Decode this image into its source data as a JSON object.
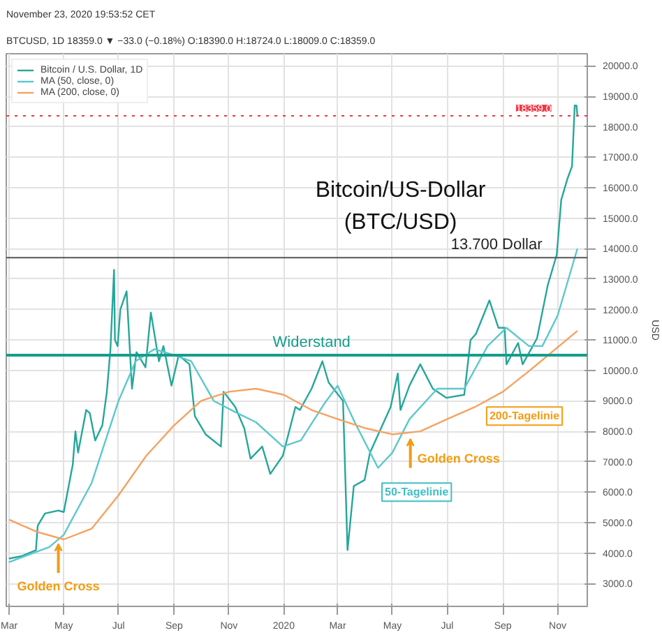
{
  "chart_data": {
    "type": "line",
    "title": "November 23, 2020 19:53:52 CET",
    "subtitle": "BTCUSD, 1D 18359.0 ▼ −33.0 (−0.18%) O:18390.0 H:18724.0 L:18009.0 C:18359.0",
    "ylabel": "USD",
    "series": [
      {
        "name": "Bitcoin / U.S. Dollar, 1D",
        "color": "#26a69a",
        "x": [
          "2019-03-01",
          "2019-03-15",
          "2019-03-31",
          "2019-04-02",
          "2019-04-10",
          "2019-04-25",
          "2019-05-01",
          "2019-05-11",
          "2019-05-14",
          "2019-05-17",
          "2019-05-26",
          "2019-05-30",
          "2019-06-05",
          "2019-06-13",
          "2019-06-18",
          "2019-06-22",
          "2019-06-26",
          "2019-06-27",
          "2019-06-30",
          "2019-07-03",
          "2019-07-10",
          "2019-07-16",
          "2019-07-21",
          "2019-07-31",
          "2019-08-06",
          "2019-08-15",
          "2019-08-20",
          "2019-08-29",
          "2019-09-06",
          "2019-09-18",
          "2019-09-24",
          "2019-10-06",
          "2019-10-23",
          "2019-10-26",
          "2019-11-08",
          "2019-11-18",
          "2019-11-25",
          "2019-12-08",
          "2019-12-17",
          "2019-12-31",
          "2020-01-14",
          "2020-01-19",
          "2020-02-01",
          "2020-02-13",
          "2020-02-20",
          "2020-03-07",
          "2020-03-12",
          "2020-03-19",
          "2020-03-31",
          "2020-04-06",
          "2020-04-29",
          "2020-05-07",
          "2020-05-10",
          "2020-05-20",
          "2020-06-01",
          "2020-06-15",
          "2020-06-30",
          "2020-07-20",
          "2020-07-27",
          "2020-08-02",
          "2020-08-17",
          "2020-08-27",
          "2020-09-03",
          "2020-09-05",
          "2020-09-18",
          "2020-09-23",
          "2020-10-09",
          "2020-10-21",
          "2020-10-31",
          "2020-11-05",
          "2020-11-12",
          "2020-11-17",
          "2020-11-20",
          "2020-11-22",
          "2020-11-23"
        ],
        "values": [
          3820,
          3900,
          4100,
          4900,
          5300,
          5400,
          5350,
          6900,
          8000,
          7300,
          8700,
          8600,
          7700,
          8200,
          9300,
          10700,
          13300,
          11000,
          10800,
          12000,
          12600,
          9400,
          10600,
          10100,
          11900,
          10300,
          10800,
          9500,
          10500,
          10200,
          8500,
          7900,
          7500,
          9300,
          8800,
          8100,
          7100,
          7500,
          6600,
          7200,
          8800,
          8700,
          9400,
          10300,
          9600,
          9000,
          4100,
          6200,
          6400,
          7300,
          8800,
          9900,
          8700,
          9500,
          10200,
          9400,
          9100,
          9200,
          11000,
          11200,
          12300,
          11400,
          11400,
          10200,
          10900,
          10200,
          11050,
          12800,
          13800,
          15600,
          16300,
          16700,
          18700,
          18700,
          18359
        ]
      },
      {
        "name": "MA (50, close, 0)",
        "color": "#5cc8cc",
        "x": [
          "2019-03-01",
          "2019-04-15",
          "2019-05-01",
          "2019-06-01",
          "2019-07-01",
          "2019-07-20",
          "2019-08-10",
          "2019-09-01",
          "2019-09-20",
          "2019-10-15",
          "2019-11-10",
          "2019-12-01",
          "2019-12-31",
          "2020-01-20",
          "2020-02-15",
          "2020-03-01",
          "2020-03-20",
          "2020-04-15",
          "2020-05-01",
          "2020-05-20",
          "2020-06-20",
          "2020-07-20",
          "2020-08-15",
          "2020-09-05",
          "2020-09-30",
          "2020-10-15",
          "2020-11-01",
          "2020-11-23"
        ],
        "values": [
          3700,
          4200,
          4600,
          6300,
          9000,
          10300,
          10700,
          10500,
          10300,
          9000,
          8600,
          8300,
          7500,
          7700,
          8900,
          9500,
          8300,
          6800,
          7300,
          8400,
          9400,
          9400,
          10800,
          11400,
          10800,
          10800,
          11800,
          14000
        ]
      },
      {
        "name": "MA (200, close, 0)",
        "color": "#f5a262",
        "x": [
          "2019-03-01",
          "2019-04-01",
          "2019-05-01",
          "2019-06-01",
          "2019-07-01",
          "2019-08-01",
          "2019-09-01",
          "2019-10-01",
          "2019-11-01",
          "2019-12-01",
          "2020-01-01",
          "2020-02-01",
          "2020-03-01",
          "2020-04-01",
          "2020-05-01",
          "2020-06-01",
          "2020-07-01",
          "2020-08-01",
          "2020-09-01",
          "2020-10-01",
          "2020-11-23"
        ],
        "values": [
          5100,
          4700,
          4450,
          4800,
          5900,
          7200,
          8200,
          9000,
          9300,
          9400,
          9200,
          8700,
          8400,
          8100,
          7900,
          8000,
          8400,
          8800,
          9300,
          10000,
          11300
        ]
      }
    ],
    "xlim": [
      "2019-02-26",
      "2020-12-04"
    ],
    "xticks": [
      {
        "value": "2019-03-01",
        "label": "Mar"
      },
      {
        "value": "2019-05-01",
        "label": "May"
      },
      {
        "value": "2019-07-01",
        "label": "Jul"
      },
      {
        "value": "2019-09-01",
        "label": "Sep"
      },
      {
        "value": "2019-11-01",
        "label": "Nov"
      },
      {
        "value": "2020-01-01",
        "label": "2020"
      },
      {
        "value": "2020-03-01",
        "label": "Mar"
      },
      {
        "value": "2020-05-01",
        "label": "May"
      },
      {
        "value": "2020-07-01",
        "label": "Jul"
      },
      {
        "value": "2020-09-01",
        "label": "Sep"
      },
      {
        "value": "2020-11-01",
        "label": "Nov"
      }
    ],
    "ylim": [
      2250,
      20400
    ],
    "yticks": [
      {
        "value": 3000,
        "label": "3000.0"
      },
      {
        "value": 4000,
        "label": "4000.0"
      },
      {
        "value": 5000,
        "label": "5000.0"
      },
      {
        "value": 6000,
        "label": "6000.0"
      },
      {
        "value": 7000,
        "label": "7000.0"
      },
      {
        "value": 8000,
        "label": "8000.0"
      },
      {
        "value": 9000,
        "label": "9000.0"
      },
      {
        "value": 10000,
        "label": "10000.0"
      },
      {
        "value": 11000,
        "label": "11000.0"
      },
      {
        "value": 12000,
        "label": "12000.0"
      },
      {
        "value": 13000,
        "label": "13000.0"
      },
      {
        "value": 14000,
        "label": "14000.0"
      },
      {
        "value": 15000,
        "label": "15000.0"
      },
      {
        "value": 16000,
        "label": "16000.0"
      },
      {
        "value": 17000,
        "label": "17000.0"
      },
      {
        "value": 18000,
        "label": "18000.0"
      },
      {
        "value": 19000,
        "label": "19000.0"
      },
      {
        "value": 20000,
        "label": "20000.0"
      }
    ],
    "ref_lines": [
      {
        "axis": "y",
        "value": 13700,
        "label": "13.700 Dollar",
        "color": "#555555",
        "line_style": "solid"
      },
      {
        "axis": "y",
        "value": 10500,
        "label": "Widerstand",
        "color": "#169c8d",
        "line_style": "solid"
      },
      {
        "axis": "y",
        "value": 18359,
        "label": "18359.0",
        "color": "#f23645",
        "line_style": "dotted"
      }
    ],
    "annotations": [
      "Bitcoin/US-Dollar",
      "(BTC/USD)",
      {
        "text": "Golden Cross",
        "x": "2019-04-25",
        "y": 4450
      },
      {
        "text": "Golden Cross",
        "x": "2020-05-21",
        "y": 7900
      },
      "50-Tagelinie",
      "200-Tagelinie"
    ],
    "grid": true,
    "legend": "top left",
    "marker": "none",
    "line_style": "solid"
  }
}
